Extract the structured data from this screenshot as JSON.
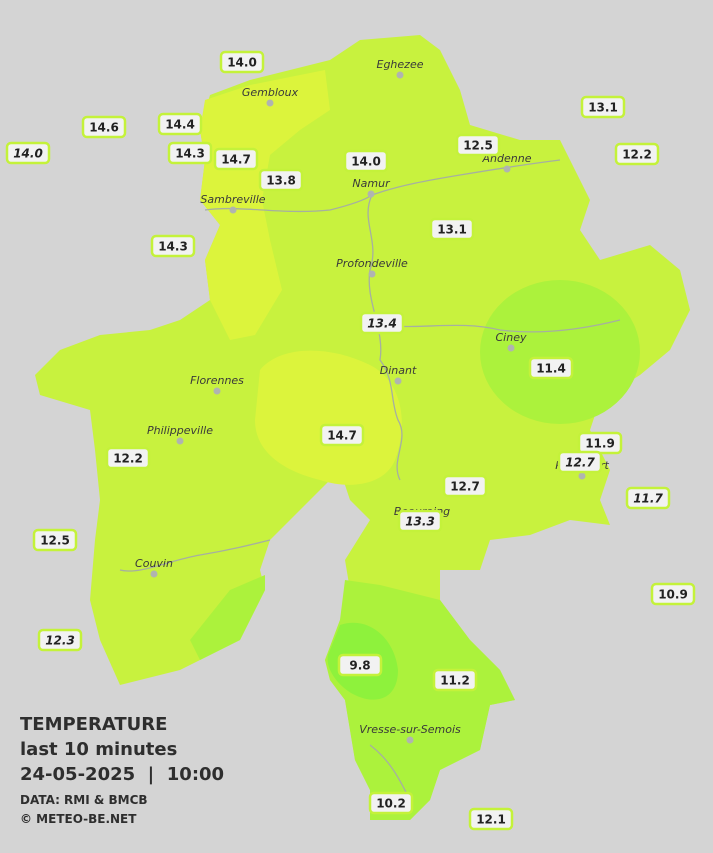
{
  "header": {
    "title": "TEMPERATURE",
    "subtitle": "last 10 minutes",
    "datetime": "24-05-2025  |  10:00"
  },
  "credits": [
    "DATA: RMI & BMCB",
    "© METEO-BE.NET"
  ],
  "cities": [
    "Eghezee",
    "Gembloux",
    "Andenne",
    "Namur",
    "Sambreville",
    "Profondeville",
    "Ciney",
    "Dinant",
    "Florennes",
    "Philippeville",
    "Rochefort",
    "Beauraing",
    "Couvin",
    "Vresse-sur-Semois"
  ],
  "stations": [
    "14.0",
    "14.6",
    "14.4",
    "14.0",
    "14.3",
    "14.7",
    "13.8",
    "14.0",
    "12.5",
    "13.1",
    "12.2",
    "13.1",
    "14.3",
    "13.4",
    "11.4",
    "14.7",
    "12.2",
    "11.9",
    "12.7",
    "11.7",
    "12.7",
    "13.3",
    "12.5",
    "10.9",
    "12.3",
    "9.8",
    "11.2",
    "10.2",
    "12.1"
  ]
}
